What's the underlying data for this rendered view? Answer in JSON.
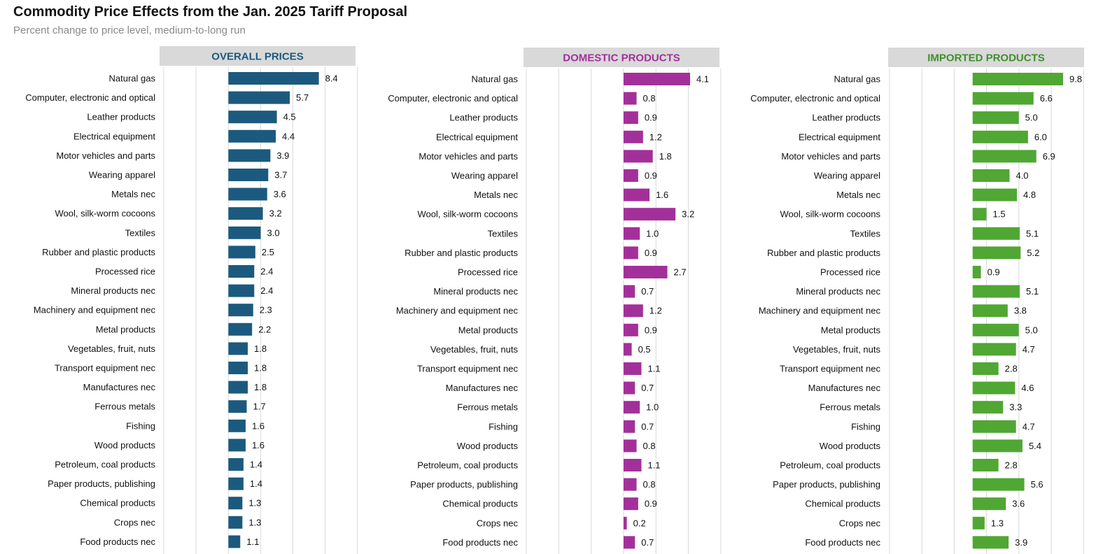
{
  "page": {
    "title": "Commodity Price Effects from the Jan. 2025 Tariff Proposal",
    "subtitle": "Percent change to price level, medium-to-long run"
  },
  "chart_data": [
    {
      "type": "bar",
      "orientation": "horizontal",
      "title": "OVERALL PRICES",
      "color": "#1b5a7e",
      "title_color": "#1b5a7e",
      "categories": [
        "Natural gas",
        "Computer, electronic and optical",
        "Leather products",
        "Electrical equipment",
        "Motor vehicles and parts",
        "Wearing apparel",
        "Metals nec",
        "Wool, silk-worm cocoons",
        "Textiles",
        "Rubber and plastic products",
        "Processed rice",
        "Mineral products nec",
        "Machinery and equipment nec",
        "Metal products",
        "Vegetables, fruit, nuts",
        "Transport equipment nec",
        "Manufactures nec",
        "Ferrous metals",
        "Fishing",
        "Wood products",
        "Petroleum, coal products",
        "Paper products, publishing",
        "Chemical products",
        "Crops nec",
        "Food products nec"
      ],
      "values": [
        8.4,
        5.7,
        4.5,
        4.4,
        3.9,
        3.7,
        3.6,
        3.2,
        3.0,
        2.5,
        2.4,
        2.4,
        2.3,
        2.2,
        1.8,
        1.8,
        1.8,
        1.7,
        1.6,
        1.6,
        1.4,
        1.4,
        1.3,
        1.3,
        1.1
      ],
      "value_labels": [
        "8.4",
        "5.7",
        "4.5",
        "4.4",
        "3.9",
        "3.7",
        "3.6",
        "3.2",
        "3.0",
        "2.5",
        "2.4",
        "2.4",
        "2.3",
        "2.2",
        "1.8",
        "1.8",
        "1.8",
        "1.7",
        "1.6",
        "1.6",
        "1.4",
        "1.4",
        "1.3",
        "1.3",
        "1.1"
      ],
      "xlim": [
        -6,
        12
      ],
      "grid": true
    },
    {
      "type": "bar",
      "orientation": "horizontal",
      "title": "DOMESTIC PRODUCTS",
      "color": "#a3309a",
      "title_color": "#a3309a",
      "categories": [
        "Natural gas",
        "Computer, electronic and optical",
        "Leather products",
        "Electrical equipment",
        "Motor vehicles and parts",
        "Wearing apparel",
        "Metals nec",
        "Wool, silk-worm cocoons",
        "Textiles",
        "Rubber and plastic products",
        "Processed rice",
        "Mineral products nec",
        "Machinery and equipment nec",
        "Metal products",
        "Vegetables, fruit, nuts",
        "Transport equipment nec",
        "Manufactures nec",
        "Ferrous metals",
        "Fishing",
        "Wood products",
        "Petroleum, coal products",
        "Paper products, publishing",
        "Chemical products",
        "Crops nec",
        "Food products nec"
      ],
      "values": [
        4.1,
        0.8,
        0.9,
        1.2,
        1.8,
        0.9,
        1.6,
        3.2,
        1.0,
        0.9,
        2.7,
        0.7,
        1.2,
        0.9,
        0.5,
        1.1,
        0.7,
        1.0,
        0.7,
        0.8,
        1.1,
        0.8,
        0.9,
        0.2,
        0.7
      ],
      "value_labels": [
        "4.1",
        "0.8",
        "0.9",
        "1.2",
        "1.8",
        "0.9",
        "1.6",
        "3.2",
        "1.0",
        "0.9",
        "2.7",
        "0.7",
        "1.2",
        "0.9",
        "0.5",
        "1.1",
        "0.7",
        "1.0",
        "0.7",
        "0.8",
        "1.1",
        "0.8",
        "0.9",
        "0.2",
        "0.7"
      ],
      "xlim": [
        -6,
        6
      ],
      "grid": true
    },
    {
      "type": "bar",
      "orientation": "horizontal",
      "title": "IMPORTED PRODUCTS",
      "color": "#50a733",
      "title_color": "#3f8f2a",
      "categories": [
        "Natural gas",
        "Computer, electronic and optical",
        "Leather products",
        "Electrical equipment",
        "Motor vehicles and parts",
        "Wearing apparel",
        "Metals nec",
        "Wool, silk-worm cocoons",
        "Textiles",
        "Rubber and plastic products",
        "Processed rice",
        "Mineral products nec",
        "Machinery and equipment nec",
        "Metal products",
        "Vegetables, fruit, nuts",
        "Transport equipment nec",
        "Manufactures nec",
        "Ferrous metals",
        "Fishing",
        "Wood products",
        "Petroleum, coal products",
        "Paper products, publishing",
        "Chemical products",
        "Crops nec",
        "Food products nec"
      ],
      "values": [
        9.8,
        6.6,
        5.0,
        6.0,
        6.9,
        4.0,
        4.8,
        1.5,
        5.1,
        5.2,
        0.9,
        5.1,
        3.8,
        5.0,
        4.7,
        2.8,
        4.6,
        3.3,
        4.7,
        5.4,
        2.8,
        5.6,
        3.6,
        1.3,
        3.9
      ],
      "value_labels": [
        "9.8",
        "6.6",
        "5.0",
        "6.0",
        "6.9",
        "4.0",
        "4.8",
        "1.5",
        "5.1",
        "5.2",
        "0.9",
        "5.1",
        "3.8",
        "5.0",
        "4.7",
        "2.8",
        "4.6",
        "3.3",
        "4.7",
        "5.4",
        "2.8",
        "5.6",
        "3.6",
        "1.3",
        "3.9"
      ],
      "xlim": [
        -9,
        12
      ],
      "grid": true
    }
  ]
}
